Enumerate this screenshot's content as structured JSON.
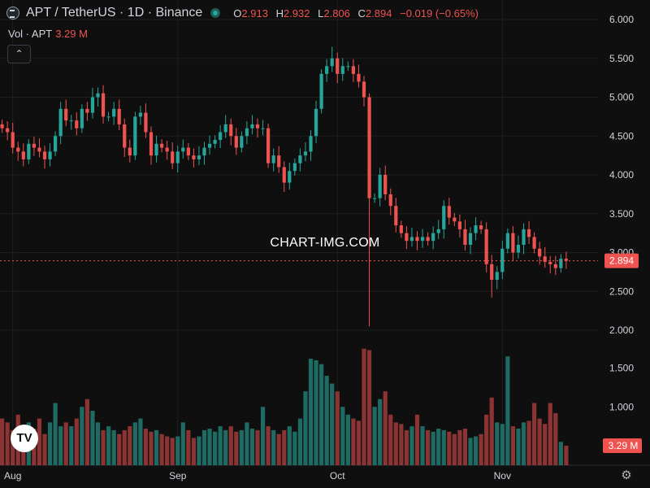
{
  "header": {
    "symbol": "APT / TetherUS · 1D · Binance",
    "open_label": "O",
    "open_value": "2.913",
    "high_label": "H",
    "high_value": "2.932",
    "low_label": "L",
    "low_value": "2.806",
    "close_label": "C",
    "close_value": "2.894",
    "change": "−0.019 (−0.65%)"
  },
  "volume": {
    "label": "Vol · APT",
    "value": "3.29 M",
    "badge": "3.29 M"
  },
  "price_badge": "2.894",
  "watermark": "CHART-IMG.COM",
  "logo_text": "TV",
  "settings_icon": "⚙",
  "collapse_icon": "⌃",
  "colors": {
    "up": "#26a69a",
    "down": "#ef5350",
    "up_vol": "#1e6b63",
    "down_vol": "#8c3434",
    "grid": "#1f1f1f",
    "background": "#0f0f0f",
    "text": "#d1d4dc"
  },
  "chart_data": {
    "type": "candlestick",
    "price_axis": {
      "min": 2.0,
      "max": 6.0,
      "ticks": [
        "2.000",
        "2.500",
        "3.000",
        "3.500",
        "4.000",
        "4.500",
        "5.000",
        "5.500",
        "6.000"
      ],
      "scale": "linear"
    },
    "volume_axis_ticks": [
      "1.000",
      "1.500"
    ],
    "time_labels": [
      "Aug",
      "Sep",
      "Oct",
      "Nov"
    ],
    "time_label_day_index": [
      2,
      33,
      63,
      94
    ],
    "last_price": 2.894,
    "close": [
      4.6,
      4.55,
      4.35,
      4.3,
      4.2,
      4.4,
      4.35,
      4.3,
      4.2,
      4.3,
      4.5,
      4.85,
      4.7,
      4.7,
      4.6,
      4.85,
      4.8,
      5.0,
      5.05,
      4.75,
      4.75,
      4.85,
      4.65,
      4.35,
      4.25,
      4.75,
      4.8,
      4.55,
      4.25,
      4.4,
      4.35,
      4.3,
      4.15,
      4.3,
      4.35,
      4.25,
      4.2,
      4.25,
      4.35,
      4.4,
      4.45,
      4.55,
      4.65,
      4.5,
      4.35,
      4.5,
      4.6,
      4.65,
      4.6,
      4.6,
      4.15,
      4.25,
      4.1,
      3.9,
      4.05,
      4.15,
      4.25,
      4.3,
      4.5,
      4.85,
      5.3,
      5.4,
      5.5,
      5.3,
      5.4,
      5.4,
      5.3,
      5.2,
      5.0,
      3.7,
      3.7,
      4.0,
      3.75,
      3.6,
      3.35,
      3.25,
      3.15,
      3.2,
      3.15,
      3.2,
      3.15,
      3.25,
      3.3,
      3.6,
      3.45,
      3.4,
      3.3,
      3.1,
      3.25,
      3.35,
      3.3,
      2.85,
      2.65,
      2.75,
      3.05,
      3.25,
      3.0,
      3.1,
      3.3,
      3.2,
      3.05,
      2.95,
      2.88,
      2.85,
      2.8,
      2.92,
      2.894
    ],
    "volume": [
      0.85,
      0.8,
      0.7,
      0.9,
      0.75,
      0.8,
      0.72,
      0.85,
      0.65,
      0.8,
      1.05,
      0.75,
      0.8,
      0.75,
      0.85,
      1.0,
      1.1,
      0.95,
      0.8,
      0.7,
      0.75,
      0.7,
      0.65,
      0.7,
      0.75,
      0.8,
      0.85,
      0.72,
      0.68,
      0.7,
      0.65,
      0.62,
      0.6,
      0.62,
      0.8,
      0.7,
      0.6,
      0.62,
      0.7,
      0.72,
      0.68,
      0.75,
      0.7,
      0.75,
      0.68,
      0.7,
      0.8,
      0.72,
      0.7,
      1.0,
      0.75,
      0.7,
      0.65,
      0.7,
      0.75,
      0.68,
      0.85,
      1.2,
      1.62,
      1.6,
      1.55,
      1.4,
      1.3,
      1.2,
      1.0,
      0.9,
      0.85,
      0.82,
      1.75,
      1.73,
      1.0,
      1.1,
      1.2,
      0.9,
      0.8,
      0.78,
      0.7,
      0.75,
      0.9,
      0.75,
      0.7,
      0.68,
      0.72,
      0.7,
      0.68,
      0.65,
      0.7,
      0.72,
      0.6,
      0.62,
      0.65,
      0.9,
      1.12,
      0.8,
      0.78,
      1.65,
      0.75,
      0.72,
      0.8,
      0.82,
      1.05,
      0.85,
      0.78,
      1.05,
      0.92,
      0.55,
      0.5
    ]
  }
}
